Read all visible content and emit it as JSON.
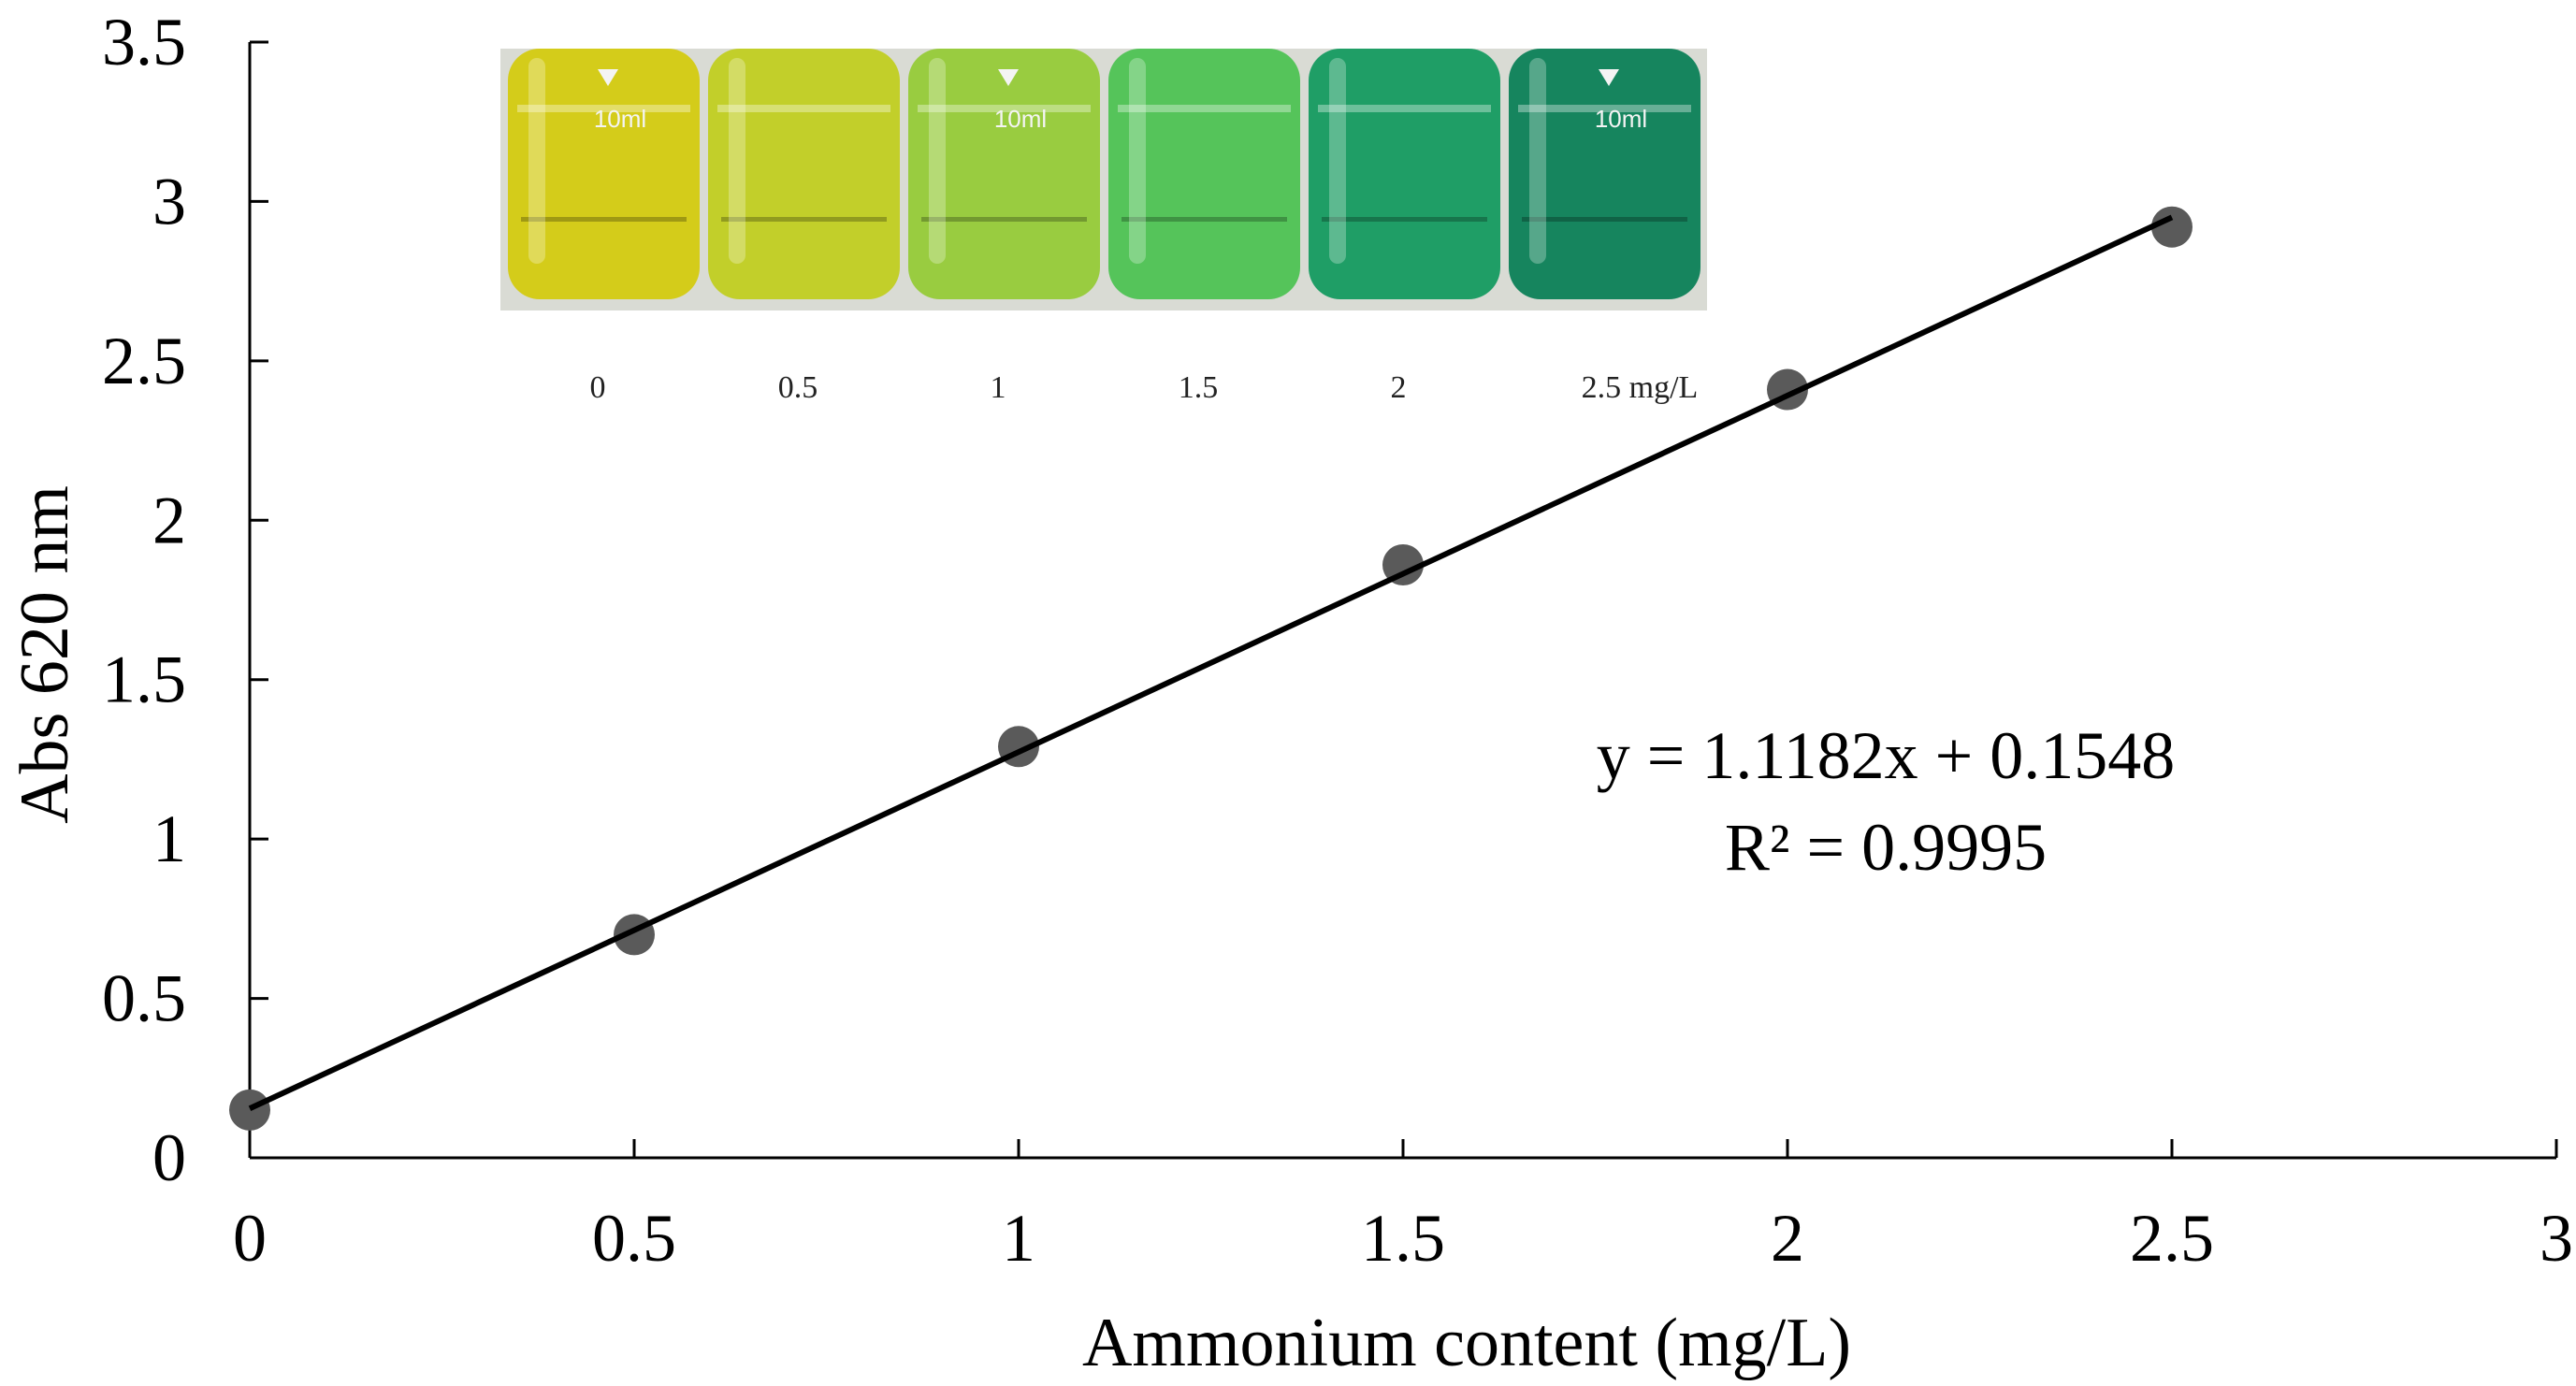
{
  "chart_data": {
    "type": "scatter",
    "xlabel": "Ammonium content (mg/L)",
    "ylabel": "Abs 620 nm",
    "xlim": [
      0,
      3
    ],
    "ylim": [
      0,
      3.5
    ],
    "x_ticks": [
      "0",
      "0.5",
      "1",
      "1.5",
      "2",
      "2.5",
      "3"
    ],
    "y_ticks": [
      "0",
      "0.5",
      "1",
      "1.5",
      "2",
      "2.5",
      "3",
      "3.5"
    ],
    "grid": false,
    "series": [
      {
        "x": [
          0,
          0.5,
          1,
          1.5,
          2,
          2.5
        ],
        "y": [
          0.15,
          0.7,
          1.29,
          1.86,
          2.41,
          2.92
        ],
        "color": "#5a5a5a"
      }
    ],
    "trendline": {
      "slope": 1.1182,
      "intercept": 0.1548,
      "x_range": [
        0,
        2.5
      ],
      "color": "#000000"
    },
    "annotations": {
      "equation": "y = 1.1182x + 0.1548",
      "r_squared": "R² = 0.9995"
    },
    "inset": {
      "vial_colors": [
        "#d4cc1a",
        "#c2cf2a",
        "#99cc40",
        "#55c45a",
        "#1f9e66",
        "#16855e"
      ],
      "vial_labels": [
        "0",
        "0.5",
        "1",
        "1.5",
        "2",
        "2.5 mg/L"
      ],
      "vial_marks": [
        "10ml",
        "",
        "10ml",
        "",
        "",
        "10ml"
      ]
    }
  }
}
